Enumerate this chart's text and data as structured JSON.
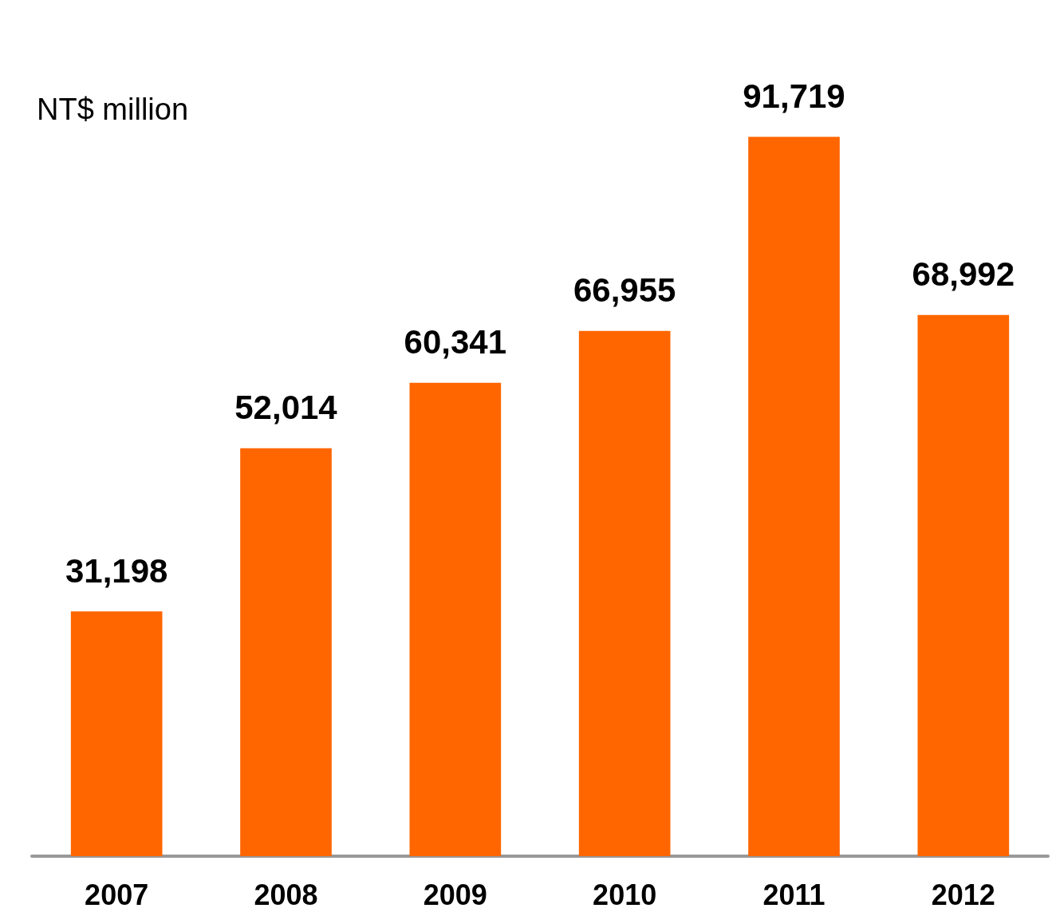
{
  "chart_data": {
    "type": "bar",
    "ylabel": "NT$ million",
    "categories": [
      "2007",
      "2008",
      "2009",
      "2010",
      "2011",
      "2012"
    ],
    "series": [
      {
        "color": "#ff6600",
        "values": [
          31198,
          52014,
          60341,
          66955,
          91719,
          68992
        ],
        "value_labels": [
          "31,198",
          "52,014",
          "60,341",
          "66,955",
          "91,719",
          "68,992"
        ]
      }
    ]
  }
}
